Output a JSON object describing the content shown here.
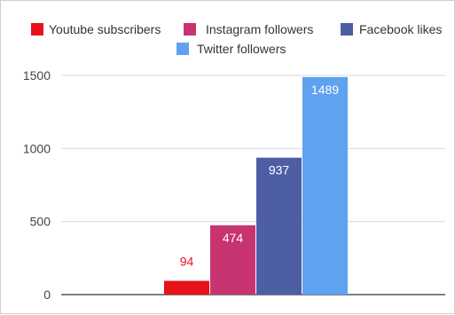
{
  "chart_data": {
    "type": "bar",
    "categories": [
      "Youtube subscribers",
      "Instagram followers",
      "Facebook likes",
      "Twitter followers"
    ],
    "values": [
      94,
      474,
      937,
      1489
    ],
    "value_labels": [
      "94",
      "474",
      "937",
      "1489"
    ],
    "colors": [
      "#e8121a",
      "#c83371",
      "#4e5ea4",
      "#5fa2ef"
    ],
    "ylim": [
      0,
      1500
    ],
    "yticks": [
      0,
      500,
      1000,
      1500
    ],
    "ytick_labels": [
      "0",
      "500",
      "1000",
      "1500"
    ],
    "grid": true,
    "legend_position": "top",
    "gridline_color": "#d9d9d9",
    "baseline_color": "#333333"
  }
}
